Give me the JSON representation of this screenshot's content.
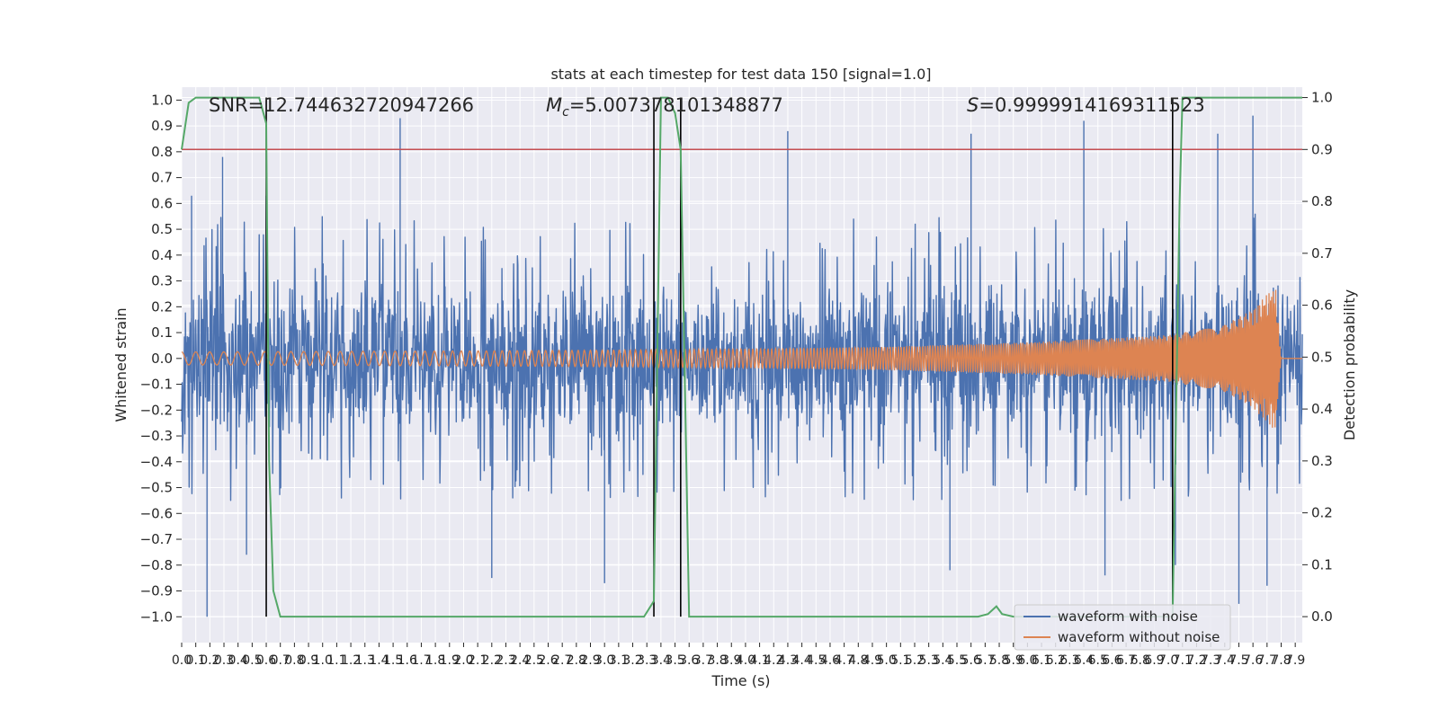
{
  "chart_data": {
    "type": "line",
    "title": "stats at each timestep for test data 150 [signal=1.0]",
    "xlabel": "Time (s)",
    "ylabel": "Whitened strain",
    "y2label": "Detection probability",
    "xlim": [
      0.0,
      7.95
    ],
    "ylim": [
      -1.1,
      1.05
    ],
    "y2lim": [
      -0.05,
      1.02
    ],
    "xticks": [
      0.0,
      0.1,
      0.2,
      0.3,
      0.4,
      0.5,
      0.6,
      0.7,
      0.8,
      0.9,
      1.0,
      1.1,
      1.2,
      1.3,
      1.4,
      1.5,
      1.6,
      1.7,
      1.8,
      1.9,
      2.0,
      2.1,
      2.2,
      2.3,
      2.4,
      2.5,
      2.6,
      2.7,
      2.8,
      2.9,
      3.0,
      3.1,
      3.2,
      3.3,
      3.4,
      3.5,
      3.6,
      3.7,
      3.8,
      3.9,
      4.0,
      4.1,
      4.2,
      4.3,
      4.4,
      4.5,
      4.6,
      4.7,
      4.8,
      4.9,
      5.0,
      5.1,
      5.2,
      5.3,
      5.4,
      5.5,
      5.6,
      5.7,
      5.8,
      5.9,
      6.0,
      6.1,
      6.2,
      6.3,
      6.4,
      6.5,
      6.6,
      6.7,
      6.8,
      6.9,
      7.0,
      7.1,
      7.2,
      7.3,
      7.4,
      7.5,
      7.6,
      7.7,
      7.8,
      7.9
    ],
    "yticks": [
      -1.0,
      -0.9,
      -0.8,
      -0.7,
      -0.6,
      -0.5,
      -0.4,
      -0.3,
      -0.2,
      -0.1,
      0.0,
      0.1,
      0.2,
      0.3,
      0.4,
      0.5,
      0.6,
      0.7,
      0.8,
      0.9,
      1.0
    ],
    "y2ticks": [
      0.0,
      0.1,
      0.2,
      0.3,
      0.4,
      0.5,
      0.6,
      0.7,
      0.8,
      0.9,
      1.0
    ],
    "annotations": {
      "snr": "SNR=12.744632720947266",
      "mc": "=5.007378101348877",
      "mc_symbol": "M",
      "mc_sub": "c",
      "s": "=0.9999914169311523",
      "s_symbol": "S"
    },
    "threshold": {
      "y2": 0.9,
      "color": "#c44e52"
    },
    "vertical_lines": [
      0.6,
      3.35,
      3.54,
      7.03
    ],
    "series": [
      {
        "name": "waveform with noise",
        "color": "#4c72b0",
        "kind": "noise",
        "envelope_upper": [
          [
            0.0,
            0.35
          ],
          [
            1.0,
            0.35
          ],
          [
            2.0,
            0.34
          ],
          [
            3.0,
            0.34
          ],
          [
            4.0,
            0.34
          ],
          [
            5.0,
            0.35
          ],
          [
            6.0,
            0.35
          ],
          [
            7.0,
            0.36
          ],
          [
            7.95,
            0.36
          ]
        ],
        "peaks": [
          [
            0.07,
            0.63
          ],
          [
            0.29,
            0.78
          ],
          [
            0.6,
            0.63
          ],
          [
            1.55,
            0.93
          ],
          [
            3.35,
            0.65
          ],
          [
            4.3,
            0.88
          ],
          [
            5.6,
            0.87
          ],
          [
            6.4,
            0.92
          ],
          [
            7.35,
            0.87
          ],
          [
            7.6,
            0.94
          ]
        ],
        "troughs": [
          [
            0.18,
            -1.0
          ],
          [
            0.46,
            -0.76
          ],
          [
            2.2,
            -0.85
          ],
          [
            3.0,
            -0.87
          ],
          [
            5.45,
            -0.82
          ],
          [
            6.55,
            -0.84
          ],
          [
            7.05,
            -0.8
          ],
          [
            7.5,
            -0.95
          ],
          [
            7.7,
            -0.88
          ]
        ]
      },
      {
        "name": "waveform without noise",
        "color": "#dd8452",
        "kind": "chirp",
        "amplitude": [
          [
            0.0,
            0.025
          ],
          [
            1.0,
            0.027
          ],
          [
            2.0,
            0.029
          ],
          [
            3.0,
            0.032
          ],
          [
            4.0,
            0.037
          ],
          [
            5.0,
            0.045
          ],
          [
            6.0,
            0.062
          ],
          [
            7.0,
            0.09
          ],
          [
            7.4,
            0.13
          ],
          [
            7.6,
            0.19
          ],
          [
            7.7,
            0.25
          ],
          [
            7.76,
            0.28
          ],
          [
            7.8,
            0.0
          ],
          [
            7.95,
            0.0
          ]
        ]
      },
      {
        "name": "detection probability",
        "color": "#55a868",
        "axis": "y2",
        "x": [
          0.0,
          0.05,
          0.1,
          0.15,
          0.2,
          0.25,
          0.3,
          0.35,
          0.4,
          0.45,
          0.5,
          0.55,
          0.6,
          0.62,
          0.65,
          0.7,
          1.0,
          2.0,
          3.0,
          3.2,
          3.28,
          3.35,
          3.4,
          3.45,
          3.5,
          3.54,
          3.6,
          4.0,
          5.0,
          5.5,
          5.65,
          5.72,
          5.78,
          5.82,
          5.9,
          6.0,
          6.5,
          7.0,
          7.03,
          7.08,
          7.1,
          7.2,
          7.5,
          7.95
        ],
        "y": [
          0.9,
          0.99,
          1.0,
          1.0,
          1.0,
          1.0,
          1.0,
          1.0,
          1.0,
          1.0,
          1.0,
          1.0,
          0.95,
          0.3,
          0.05,
          0.0,
          0.0,
          0.0,
          0.0,
          0.0,
          0.0,
          0.03,
          1.0,
          1.0,
          0.97,
          0.9,
          0.0,
          0.0,
          0.0,
          0.0,
          0.0,
          0.005,
          0.02,
          0.005,
          0.0,
          0.0,
          0.0,
          0.0,
          0.0,
          0.8,
          1.0,
          1.0,
          1.0,
          1.0
        ]
      }
    ],
    "legend": {
      "position": "lower-right",
      "entries": [
        {
          "label": "waveform with noise",
          "color": "#4c72b0"
        },
        {
          "label": "waveform without noise",
          "color": "#dd8452"
        }
      ]
    }
  }
}
